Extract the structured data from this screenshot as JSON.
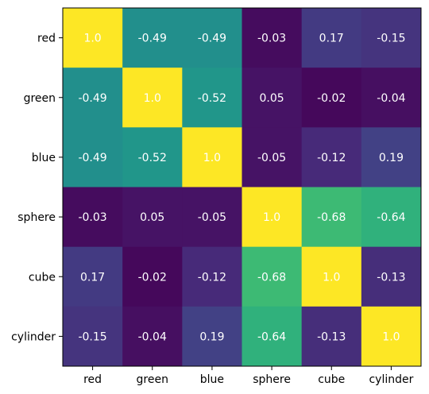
{
  "chart_data": {
    "type": "heatmap",
    "title": "",
    "xlabel": "",
    "ylabel": "",
    "x_categories": [
      "red",
      "green",
      "blue",
      "sphere",
      "cube",
      "cylinder"
    ],
    "y_categories": [
      "red",
      "green",
      "blue",
      "sphere",
      "cube",
      "cylinder"
    ],
    "values": [
      [
        1.0,
        -0.49,
        -0.49,
        -0.03,
        0.17,
        -0.15
      ],
      [
        -0.49,
        1.0,
        -0.52,
        0.05,
        -0.02,
        -0.04
      ],
      [
        -0.49,
        -0.52,
        1.0,
        -0.05,
        -0.12,
        0.19
      ],
      [
        -0.03,
        0.05,
        -0.05,
        1.0,
        -0.68,
        -0.64
      ],
      [
        0.17,
        -0.02,
        -0.12,
        -0.68,
        1.0,
        -0.13
      ],
      [
        -0.15,
        -0.04,
        0.19,
        -0.64,
        -0.13,
        1.0
      ]
    ],
    "value_labels": [
      [
        "1.0",
        "-0.49",
        "-0.49",
        "-0.03",
        "0.17",
        "-0.15"
      ],
      [
        "-0.49",
        "1.0",
        "-0.52",
        "0.05",
        "-0.02",
        "-0.04"
      ],
      [
        "-0.49",
        "-0.52",
        "1.0",
        "-0.05",
        "-0.12",
        "0.19"
      ],
      [
        "-0.03",
        "0.05",
        "-0.05",
        "1.0",
        "-0.68",
        "-0.64"
      ],
      [
        "0.17",
        "-0.02",
        "-0.12",
        "-0.68",
        "1.0",
        "-0.13"
      ],
      [
        "-0.15",
        "-0.04",
        "0.19",
        "-0.64",
        "-0.13",
        "1.0"
      ]
    ],
    "colormap": "viridis",
    "color_scale": {
      "mapped_value": "absolute value",
      "min": 0,
      "max": 1
    },
    "colorbar": false,
    "grid": false,
    "legend": "none"
  },
  "colors": {
    "cell_text": "#ffffff",
    "axis": "#000000",
    "background": "#ffffff"
  }
}
